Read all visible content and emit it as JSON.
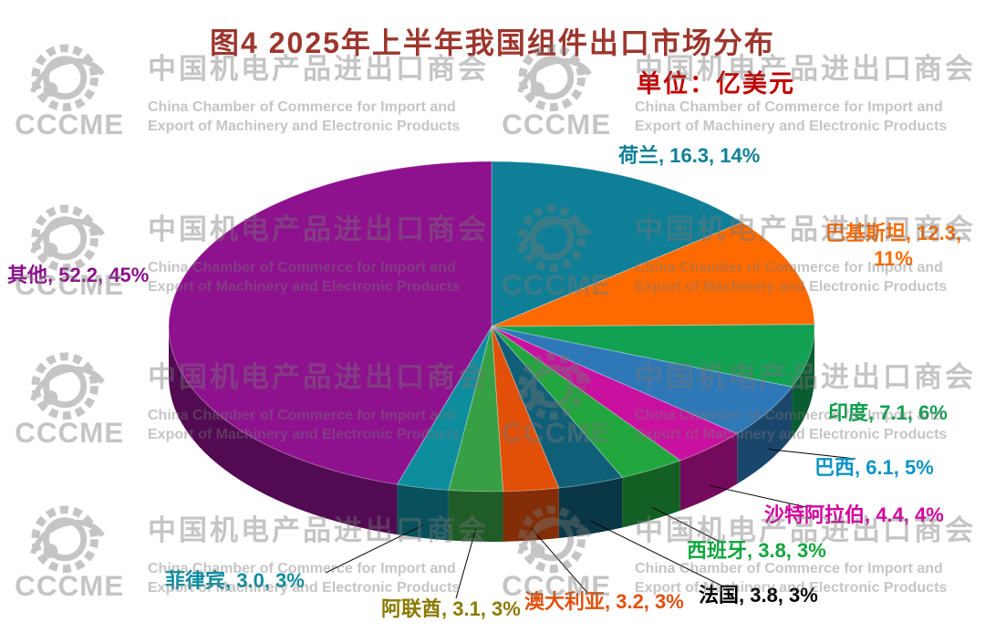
{
  "figure": {
    "title": "图4  2025年上半年我国组件出口市场分布",
    "unit_label": "单位：亿美元",
    "title_color": "#9C362D",
    "unit_color": "#C00000"
  },
  "watermark": {
    "logo_text": "CCCME",
    "cn": "中国机电产品进出口商会",
    "en_line1": "China Chamber of Commerce for Import and",
    "en_line2": "Export of Machinery and Electronic Products"
  },
  "chart_data": {
    "type": "pie",
    "style": "3d-pie",
    "title": "2025年上半年我国组件出口市场分布",
    "unit": "亿美元",
    "legend_position": "outside-data-labels",
    "label_format": "name, value, percent",
    "slices": [
      {
        "name": "荷兰",
        "value": "16.3",
        "pct": 14,
        "color": "#0E7F96",
        "label_color": "#0E7F96"
      },
      {
        "name": "巴基斯坦",
        "value": "12.3",
        "pct": 11,
        "color": "#FF6A00",
        "label_color": "#FF6A00"
      },
      {
        "name": "印度",
        "value": "7.1",
        "pct": 6,
        "color": "#12A053",
        "label_color": "#0FA04E"
      },
      {
        "name": "巴西",
        "value": "6.1",
        "pct": 5,
        "color": "#2E78B8",
        "label_color": "#0C93C5"
      },
      {
        "name": "沙特阿拉伯",
        "value": "4.4",
        "pct": 4,
        "color": "#C8119E",
        "label_color": "#D4009E"
      },
      {
        "name": "西班牙",
        "value": "3.8",
        "pct": 3,
        "color": "#22A63E",
        "label_color": "#10A63E"
      },
      {
        "name": "法国",
        "value": "3.8",
        "pct": 3,
        "color": "#0F5F78",
        "label_color": "#000000"
      },
      {
        "name": "澳大利亚",
        "value": "3.2",
        "pct": 3,
        "color": "#E2500A",
        "label_color": "#E2500A"
      },
      {
        "name": "阿联酋",
        "value": "3.1",
        "pct": 3,
        "color": "#379F44",
        "label_color": "#8A7A00"
      },
      {
        "name": "菲律宾",
        "value": "3.0",
        "pct": 3,
        "color": "#0D8C9E",
        "label_color": "#0D8C9E"
      },
      {
        "name": "其他",
        "value": "52.2",
        "pct": 45,
        "color": "#8E118E",
        "label_color": "#8B108B"
      }
    ]
  }
}
